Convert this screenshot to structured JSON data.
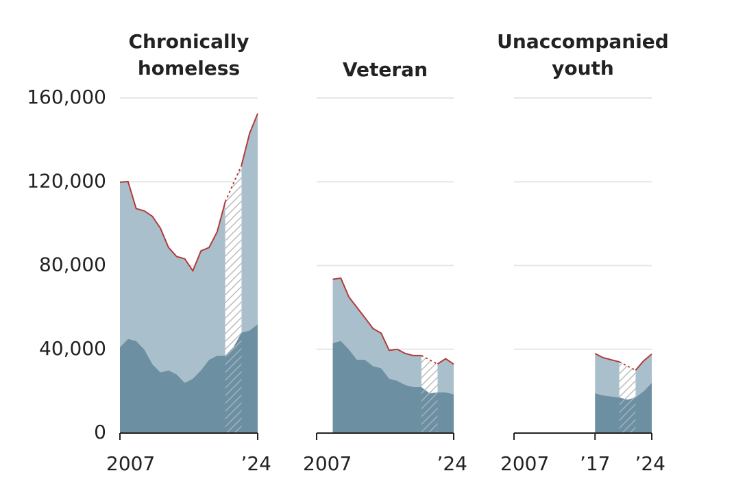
{
  "chart_data": [
    {
      "type": "area",
      "title": [
        "Chronically",
        "homeless"
      ],
      "x": [
        2007,
        2008,
        2009,
        2010,
        2011,
        2012,
        2013,
        2014,
        2015,
        2016,
        2017,
        2018,
        2019,
        2020,
        2021,
        2022,
        2023,
        2024
      ],
      "series": [
        {
          "color": "#6d8fa2",
          "values": [
            41000,
            45000,
            44000,
            40000,
            33000,
            29000,
            30000,
            28000,
            24000,
            26000,
            30000,
            35000,
            37000,
            37000,
            41000,
            48000,
            49000,
            52000
          ]
        },
        {
          "color": "#a9bfcc",
          "values": [
            78800,
            75100,
            63200,
            66100,
            70500,
            68800,
            58600,
            56300,
            59200,
            51500,
            57000,
            53600,
            59100,
            73500,
            null,
            79800,
            94100,
            100600
          ]
        }
      ],
      "line_color": "#b23a3a",
      "xlim": [
        2007,
        2024
      ],
      "xticks": [
        2007,
        {
          "value": 2024,
          "label": "’24"
        }
      ],
      "ylim": [
        0,
        160000
      ],
      "yticks": [
        0,
        {
          "value": 40000,
          "label": "40,000"
        },
        {
          "value": 80000,
          "label": "80,000"
        },
        {
          "value": 120000,
          "label": "120,000"
        },
        {
          "value": 160000,
          "label": "160,000"
        }
      ],
      "ytick_labels": true,
      "grid": true
    },
    {
      "type": "area",
      "title": [
        "Veteran"
      ],
      "x": [
        2007,
        2008,
        2009,
        2010,
        2011,
        2012,
        2013,
        2014,
        2015,
        2016,
        2017,
        2018,
        2019,
        2020,
        2021,
        2022,
        2023,
        2024
      ],
      "series": [
        {
          "color": "#6d8fa2",
          "values": [
            null,
            null,
            43000,
            44000,
            40000,
            35000,
            35000,
            32000,
            31000,
            26000,
            25000,
            23000,
            22000,
            22000,
            19000,
            19500,
            19500,
            18500
          ]
        },
        {
          "color": "#a9bfcc",
          "values": [
            null,
            null,
            30400,
            30000,
            25000,
            25000,
            20000,
            17900,
            16700,
            13500,
            15000,
            15000,
            15000,
            15000,
            null,
            13500,
            16000,
            14400
          ]
        }
      ],
      "line_color": "#b23a3a",
      "xlim": [
        2007,
        2024
      ],
      "xticks": [
        2007,
        {
          "value": 2024,
          "label": "’24"
        }
      ],
      "ylim": [
        0,
        160000
      ],
      "yticks": [
        0,
        40000,
        80000,
        120000,
        160000
      ],
      "ytick_labels": false,
      "grid": true
    },
    {
      "type": "area",
      "title": [
        "Unaccompanied",
        "youth"
      ],
      "x": [
        2007,
        2008,
        2009,
        2010,
        2011,
        2012,
        2013,
        2014,
        2015,
        2016,
        2017,
        2018,
        2019,
        2020,
        2021,
        2022,
        2023,
        2024
      ],
      "series": [
        {
          "color": "#6d8fa2",
          "values": [
            null,
            null,
            null,
            null,
            null,
            null,
            null,
            null,
            null,
            null,
            19000,
            18000,
            17500,
            17000,
            16000,
            17000,
            20000,
            24000
          ]
        },
        {
          "color": "#a9bfcc",
          "values": [
            null,
            null,
            null,
            null,
            null,
            null,
            null,
            null,
            null,
            null,
            19000,
            18000,
            17500,
            17000,
            null,
            13000,
            14500,
            13700
          ]
        }
      ],
      "line_color": "#b23a3a",
      "xlim": [
        2007,
        2024
      ],
      "xticks": [
        2007,
        {
          "value": 2017,
          "label": "’17"
        },
        {
          "value": 2024,
          "label": "’24"
        }
      ],
      "ylim": [
        0,
        160000
      ],
      "yticks": [
        0,
        40000,
        80000,
        120000,
        160000
      ],
      "ytick_labels": false,
      "grid": true
    }
  ]
}
